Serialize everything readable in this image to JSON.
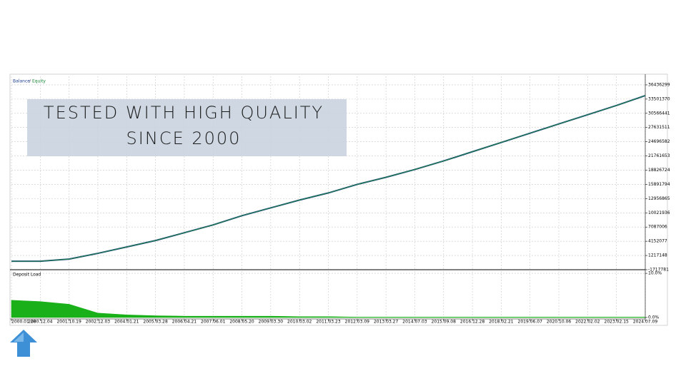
{
  "chart_data": [
    {
      "type": "line",
      "annotation": [
        "TESTED WITH HIGH QUALITY",
        "SINCE 2000"
      ],
      "categories": [
        "2000.01.28",
        "2000.12.04",
        "2001.10.19",
        "2002.12.03",
        "2004.01.21",
        "2005.03.28",
        "2006.04.21",
        "2007.06.01",
        "2008.05.20",
        "2009.03.30",
        "2010.03.02",
        "2011.03.23",
        "2012.03.09",
        "2013.03.27",
        "2014.07.03",
        "2015.09.08",
        "2016.12.28",
        "2018.02.21",
        "2019.06.07",
        "2020.10.06",
        "2022.02.02",
        "2023.02.15",
        "2024.07.09"
      ],
      "series": [
        {
          "name": "Balance",
          "color": "#1f3f8f",
          "values": [
            40000,
            40000,
            480000,
            1660000,
            2980000,
            4300000,
            5910000,
            7530000,
            9430000,
            11050000,
            12660000,
            14130000,
            15890000,
            17360000,
            18970000,
            20730000,
            22640000,
            24550000,
            26460000,
            28370000,
            30270000,
            32180000,
            34230000
          ]
        },
        {
          "name": "Equity",
          "color": "#1e8a3c",
          "values": [
            40000,
            40000,
            480000,
            1660000,
            2980000,
            4300000,
            5910000,
            7530000,
            9430000,
            11050000,
            12660000,
            14130000,
            15890000,
            17360000,
            18970000,
            20730000,
            22640000,
            24550000,
            26460000,
            28370000,
            30270000,
            32180000,
            34230000
          ]
        }
      ],
      "ylim": [
        -1717781,
        38197000
      ],
      "yticks": [
        36436299,
        33501370,
        30566441,
        27631511,
        24696582,
        21761653,
        18826724,
        15891794,
        12956865,
        10021936,
        7087006,
        4152077,
        1217148,
        -1717781
      ],
      "grid": true
    },
    {
      "type": "area",
      "title": "Deposit Load",
      "color": "#19b019",
      "values": [
        3.9,
        3.6,
        3.0,
        1.0,
        0.6,
        0.4,
        0.3,
        0.3,
        0.3,
        0.3,
        0.2,
        0.2,
        0.1,
        0.1,
        0.1,
        0.1,
        0.1,
        0.1,
        0.1,
        0.1,
        0.1,
        0.1,
        0.1
      ],
      "ylim": [
        0,
        10.5
      ],
      "yticks": [
        {
          "value": 10,
          "label": "10.0%"
        },
        {
          "value": 0,
          "label": "0.0%"
        }
      ],
      "grid": true
    }
  ]
}
